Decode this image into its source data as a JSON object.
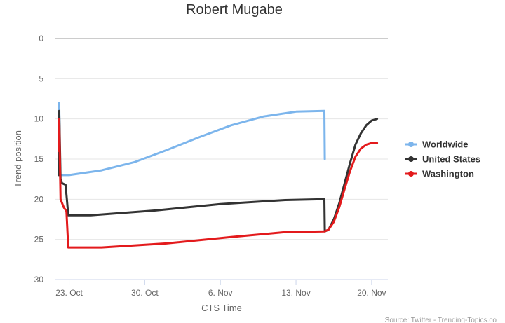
{
  "chart_data": {
    "type": "line",
    "title": "Robert Mugabe",
    "xlabel": "CTS Time",
    "ylabel": "Trend position",
    "y_reversed": true,
    "ylim": [
      0,
      30
    ],
    "y_ticks": [
      0,
      5,
      10,
      15,
      20,
      25,
      30
    ],
    "xlim": [
      "2017-10-21T16:00",
      "2017-11-21T12:00"
    ],
    "x_ticks": [
      {
        "date": "2017-10-23",
        "label": "23. Oct"
      },
      {
        "date": "2017-10-30",
        "label": "30. Oct"
      },
      {
        "date": "2017-11-06",
        "label": "6. Nov"
      },
      {
        "date": "2017-11-13",
        "label": "13. Nov"
      },
      {
        "date": "2017-11-20",
        "label": "20. Nov"
      }
    ],
    "grid": "horizontal",
    "legend_position": "right",
    "series": [
      {
        "name": "Worldwide",
        "color": "#7cb5ec",
        "points": [
          [
            "2017-10-22T01:00",
            17
          ],
          [
            "2017-10-22T02:00",
            8
          ],
          [
            "2017-10-22T04:00",
            17
          ],
          [
            "2017-10-23T00:00",
            17
          ],
          [
            "2017-10-26T00:00",
            16.4
          ],
          [
            "2017-10-29T00:00",
            15.4
          ],
          [
            "2017-11-01T00:00",
            13.9
          ],
          [
            "2017-11-04T00:00",
            12.3
          ],
          [
            "2017-11-07T00:00",
            10.8
          ],
          [
            "2017-11-10T00:00",
            9.7
          ],
          [
            "2017-11-13T00:00",
            9.1
          ],
          [
            "2017-11-15T15:00",
            9
          ],
          [
            "2017-11-15T16:00",
            15
          ]
        ]
      },
      {
        "name": "United States",
        "color": "#333333",
        "points": [
          [
            "2017-10-22T01:00",
            17
          ],
          [
            "2017-10-22T02:00",
            9
          ],
          [
            "2017-10-22T05:00",
            17.5
          ],
          [
            "2017-10-22T08:00",
            18
          ],
          [
            "2017-10-22T16:00",
            18.2
          ],
          [
            "2017-10-22T19:00",
            20
          ],
          [
            "2017-10-22T22:00",
            22
          ],
          [
            "2017-10-25T00:00",
            22
          ],
          [
            "2017-10-31T00:00",
            21.4
          ],
          [
            "2017-11-06T00:00",
            20.6
          ],
          [
            "2017-11-12T00:00",
            20.1
          ],
          [
            "2017-11-15T15:00",
            20
          ],
          [
            "2017-11-15T16:00",
            24
          ],
          [
            "2017-11-16T00:00",
            23.8
          ],
          [
            "2017-11-16T12:00",
            22.5
          ],
          [
            "2017-11-17T00:00",
            20.5
          ],
          [
            "2017-11-17T12:00",
            18
          ],
          [
            "2017-11-18T00:00",
            15.5
          ],
          [
            "2017-11-18T12:00",
            13.2
          ],
          [
            "2017-11-19T00:00",
            11.8
          ],
          [
            "2017-11-19T12:00",
            10.8
          ],
          [
            "2017-11-20T00:00",
            10.2
          ],
          [
            "2017-11-20T12:00",
            10
          ]
        ]
      },
      {
        "name": "Washington",
        "color": "#e31a1c",
        "points": [
          [
            "2017-10-22T01:00",
            14
          ],
          [
            "2017-10-22T02:00",
            10
          ],
          [
            "2017-10-22T05:00",
            20
          ],
          [
            "2017-10-22T12:00",
            21
          ],
          [
            "2017-10-22T18:00",
            21.5
          ],
          [
            "2017-10-22T22:00",
            26
          ],
          [
            "2017-10-26T00:00",
            26
          ],
          [
            "2017-11-01T00:00",
            25.5
          ],
          [
            "2017-11-07T00:00",
            24.7
          ],
          [
            "2017-11-12T00:00",
            24.1
          ],
          [
            "2017-11-15T15:00",
            24
          ],
          [
            "2017-11-16T00:00",
            23.8
          ],
          [
            "2017-11-16T12:00",
            22.8
          ],
          [
            "2017-11-17T00:00",
            21
          ],
          [
            "2017-11-17T12:00",
            18.7
          ],
          [
            "2017-11-18T00:00",
            16.5
          ],
          [
            "2017-11-18T12:00",
            14.7
          ],
          [
            "2017-11-19T00:00",
            13.7
          ],
          [
            "2017-11-19T12:00",
            13.2
          ],
          [
            "2017-11-20T00:00",
            13
          ],
          [
            "2017-11-20T12:00",
            13
          ]
        ]
      }
    ],
    "credits": "Source: Twitter - Trending-Topics.co"
  }
}
